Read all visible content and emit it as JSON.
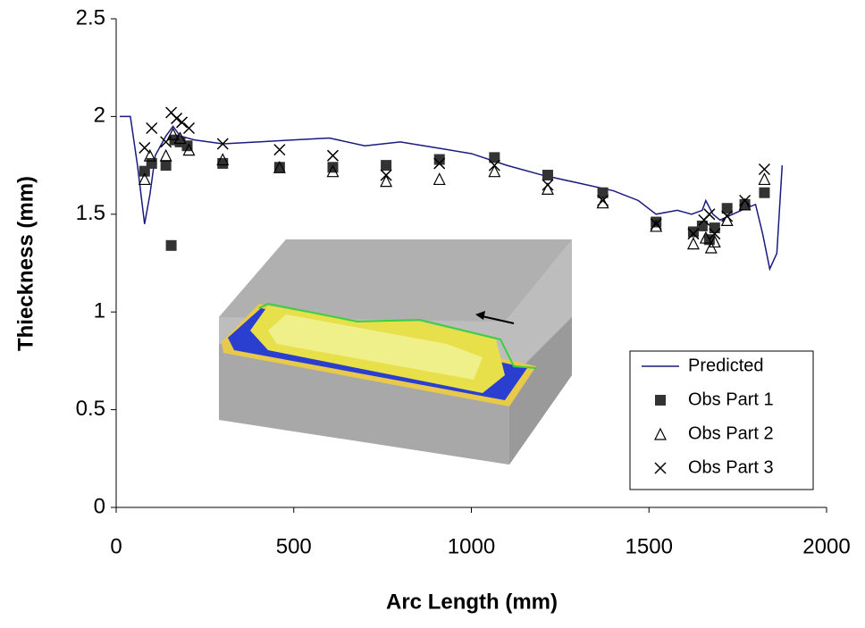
{
  "chart_data": {
    "type": "scatter",
    "x_label": "Arc Length (mm)",
    "y_label": "Thieckness (mm)",
    "xlim": [
      0,
      2000
    ],
    "xticks": [
      0,
      500,
      1000,
      1500,
      2000
    ],
    "ylim": [
      0,
      2.5
    ],
    "yticks": [
      0,
      0.5,
      1,
      1.5,
      2,
      2.5
    ],
    "grid": false,
    "legend": "lower-right",
    "series": [
      {
        "name": "Predicted",
        "color": "#1a1a80",
        "marker": "line",
        "x": [
          10,
          40,
          60,
          80,
          95,
          110,
          140,
          160,
          180,
          220,
          300,
          400,
          500,
          600,
          700,
          800,
          900,
          1000,
          1100,
          1200,
          1300,
          1400,
          1470,
          1520,
          1580,
          1620,
          1650,
          1660,
          1680,
          1700,
          1760,
          1800,
          1820,
          1840,
          1860,
          1875
        ],
        "values": [
          2.0,
          2.0,
          1.75,
          1.45,
          1.6,
          1.8,
          1.9,
          1.95,
          1.9,
          1.88,
          1.86,
          1.87,
          1.88,
          1.89,
          1.85,
          1.87,
          1.84,
          1.81,
          1.75,
          1.7,
          1.66,
          1.62,
          1.57,
          1.5,
          1.52,
          1.5,
          1.52,
          1.57,
          1.5,
          1.47,
          1.52,
          1.55,
          1.4,
          1.22,
          1.3,
          1.75
        ]
      },
      {
        "name": "Obs Part 1",
        "color": "#333333",
        "marker": "square",
        "x": [
          80,
          100,
          140,
          155,
          165,
          180,
          200,
          300,
          460,
          610,
          760,
          910,
          1065,
          1215,
          1370,
          1520,
          1625,
          1650,
          1670,
          1685,
          1720,
          1770,
          1825
        ],
        "values": [
          1.72,
          1.76,
          1.75,
          1.34,
          1.88,
          1.87,
          1.85,
          1.76,
          1.74,
          1.74,
          1.75,
          1.78,
          1.79,
          1.7,
          1.61,
          1.46,
          1.41,
          1.44,
          1.37,
          1.43,
          1.53,
          1.55,
          1.61
        ]
      },
      {
        "name": "Obs Part 2",
        "color": "#000000",
        "marker": "triangle",
        "x": [
          80,
          95,
          140,
          160,
          180,
          205,
          300,
          460,
          610,
          760,
          910,
          1065,
          1215,
          1370,
          1520,
          1625,
          1660,
          1675,
          1685,
          1720,
          1770,
          1825
        ],
        "values": [
          1.68,
          1.8,
          1.8,
          1.91,
          1.89,
          1.83,
          1.78,
          1.74,
          1.72,
          1.67,
          1.68,
          1.72,
          1.63,
          1.56,
          1.44,
          1.35,
          1.38,
          1.33,
          1.36,
          1.47,
          1.55,
          1.68
        ]
      },
      {
        "name": "Obs Part 3",
        "color": "#000000",
        "marker": "cross",
        "x": [
          80,
          100,
          140,
          155,
          170,
          185,
          205,
          300,
          460,
          610,
          760,
          910,
          1065,
          1215,
          1370,
          1520,
          1625,
          1655,
          1670,
          1685,
          1720,
          1770,
          1825
        ],
        "values": [
          1.84,
          1.94,
          1.87,
          2.02,
          1.99,
          1.97,
          1.94,
          1.86,
          1.83,
          1.8,
          1.7,
          1.76,
          1.75,
          1.65,
          1.57,
          1.45,
          1.4,
          1.47,
          1.5,
          1.4,
          1.49,
          1.57,
          1.73
        ]
      }
    ]
  }
}
